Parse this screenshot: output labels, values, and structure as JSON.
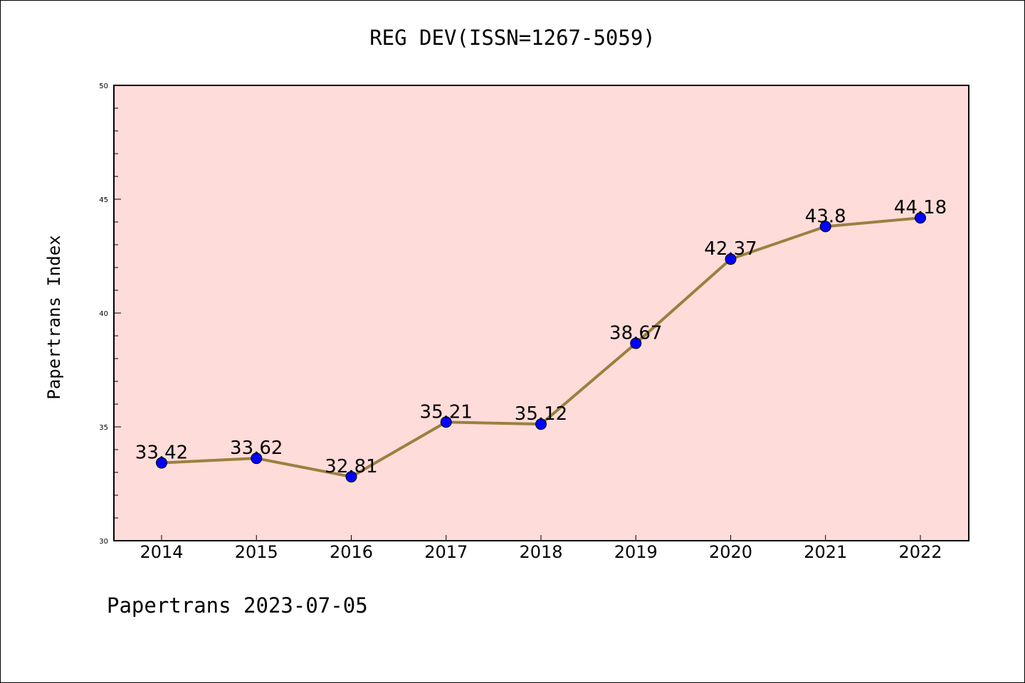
{
  "header": {
    "title": "REG DEV(ISSN=1267-5059)"
  },
  "footer": {
    "text": "Papertrans 2023-07-05"
  },
  "colors": {
    "plot_background": "#fddcd9",
    "line": "#9a8040",
    "marker": "#0000ff"
  },
  "chart_data": {
    "type": "line",
    "title": "REG DEV(ISSN=1267-5059)",
    "xlabel": "",
    "ylabel": "Papertrans Index",
    "x": [
      "2014",
      "2015",
      "2016",
      "2017",
      "2018",
      "2019",
      "2020",
      "2021",
      "2022"
    ],
    "values": [
      33.42,
      33.62,
      32.81,
      35.21,
      35.12,
      38.67,
      42.37,
      43.8,
      44.18
    ],
    "data_labels": [
      "33.42",
      "33.62",
      "32.81",
      "35.21",
      "35.12",
      "38.67",
      "42.37",
      "43.8",
      "44.18"
    ],
    "ylim": [
      30,
      50
    ],
    "yticks": [
      "30",
      "35",
      "40",
      "45",
      "50"
    ],
    "grid": false,
    "legend": "none"
  }
}
